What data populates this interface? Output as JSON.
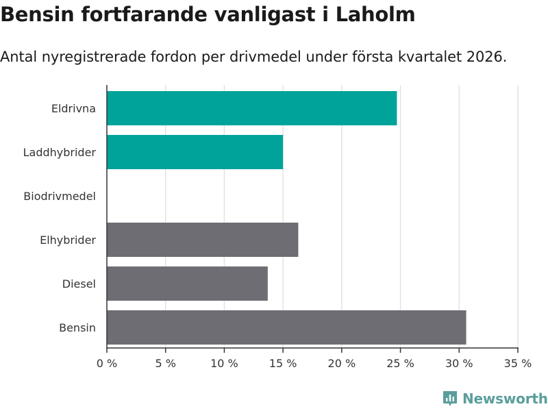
{
  "title": "Bensin fortfarande vanligast i Laholm",
  "subtitle": "Antal nyregistrerade fordon per drivmedel under första kvartalet 2026.",
  "brand": {
    "name": "Newsworthy",
    "color": "#5a9e9c",
    "icon": "newsworthy-logo-icon"
  },
  "colors": {
    "highlight": "#00a39a",
    "default": "#6e6d73",
    "grid": "#e3e3e3",
    "axis": "#333333"
  },
  "chart_data": {
    "type": "bar",
    "orientation": "horizontal",
    "categories": [
      "Eldrivna",
      "Laddhybrider",
      "Biodrivmedel",
      "Elhybrider",
      "Diesel",
      "Bensin"
    ],
    "values": [
      24.7,
      15.0,
      0,
      16.3,
      13.7,
      30.6
    ],
    "highlighted": [
      true,
      true,
      false,
      false,
      false,
      false
    ],
    "xlim": [
      0,
      35
    ],
    "xticks": [
      "0 %",
      "5 %",
      "10 %",
      "15 %",
      "20 %",
      "25 %",
      "30 %",
      "35 %"
    ],
    "xtick_values": [
      0,
      5,
      10,
      15,
      20,
      25,
      30,
      35
    ],
    "grid": true
  }
}
